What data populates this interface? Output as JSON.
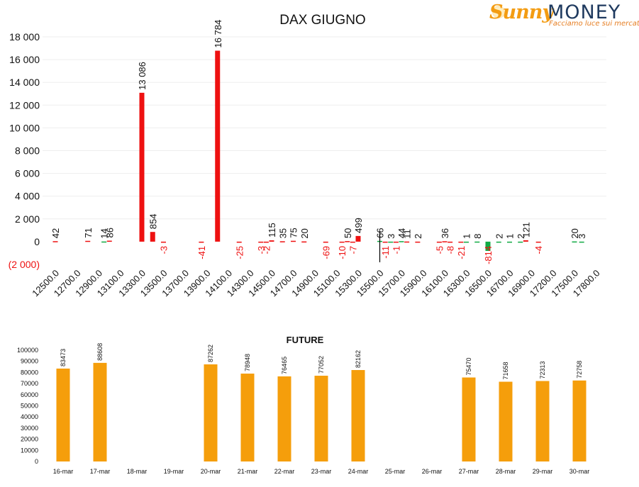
{
  "logo": {
    "brand1": "Sunny",
    "brand2": "MONEY",
    "tagline": "Facciamo luce sui mercati"
  },
  "colors": {
    "call": "#ee1111",
    "put": "#11aa44",
    "future": "#f59e0b",
    "text": "#111111",
    "negative": "#ee1111",
    "spot_line": "#000000"
  },
  "chart_data": [
    {
      "type": "bar",
      "title": "DAX GIUGNO",
      "ylim": [
        -2000,
        18000
      ],
      "yticks": [
        {
          "v": 18000,
          "label": "18 000"
        },
        {
          "v": 16000,
          "label": "16 000"
        },
        {
          "v": 14000,
          "label": "14 000"
        },
        {
          "v": 12000,
          "label": "12 000"
        },
        {
          "v": 10000,
          "label": "10 000"
        },
        {
          "v": 8000,
          "label": "8 000"
        },
        {
          "v": 6000,
          "label": "6 000"
        },
        {
          "v": 4000,
          "label": "4 000"
        },
        {
          "v": 2000,
          "label": "2 000"
        },
        {
          "v": 0,
          "label": "0"
        },
        {
          "v": -2000,
          "label": "(2 000)"
        }
      ],
      "categories": [
        "12500.0",
        "12700.0",
        "12900.0",
        "13100.0",
        "13300.0",
        "13500.0",
        "13700.0",
        "13900.0",
        "14100.0",
        "14300.0",
        "14500.0",
        "14700.0",
        "14900.0",
        "15100.0",
        "15300.0",
        "15500.0",
        "15700.0",
        "15900.0",
        "16100.0",
        "16300.0",
        "16500.0",
        "16700.0",
        "16900.0",
        "17200.0",
        "17500.0",
        "17800.0"
      ],
      "category_positions": [
        12500,
        12700,
        12900,
        13100,
        13300,
        13500,
        13700,
        13900,
        14100,
        14300,
        14500,
        14700,
        14900,
        15100,
        15300,
        15500,
        15700,
        15900,
        16100,
        16300,
        16500,
        16700,
        16900,
        17200,
        17500,
        17800
      ],
      "spot_line_at": 15500,
      "bars": [
        {
          "strike": 12500,
          "value": 42,
          "label": "42",
          "color": "call"
        },
        {
          "strike": 12800,
          "value": 71,
          "label": "71",
          "color": "call"
        },
        {
          "strike": 12950,
          "value": 14,
          "label": "14",
          "color": "put"
        },
        {
          "strike": 13000,
          "value": 86,
          "label": "86",
          "color": "call"
        },
        {
          "strike": 13300,
          "value": 13086,
          "label": "13 086",
          "color": "call"
        },
        {
          "strike": 13400,
          "value": 854,
          "label": "854",
          "color": "call"
        },
        {
          "strike": 13500,
          "value": -3,
          "label": "-3",
          "color": "call"
        },
        {
          "strike": 13850,
          "value": -41,
          "label": "-41",
          "color": "call"
        },
        {
          "strike": 14000,
          "value": 16784,
          "label": "16 784",
          "color": "call"
        },
        {
          "strike": 14200,
          "value": -25,
          "label": "-25",
          "color": "call"
        },
        {
          "strike": 14400,
          "value": -3,
          "label": "-3",
          "color": "call"
        },
        {
          "strike": 14450,
          "value": -2,
          "label": "-2",
          "color": "call"
        },
        {
          "strike": 14500,
          "value": 115,
          "label": "115",
          "color": "call"
        },
        {
          "strike": 14600,
          "value": 35,
          "label": "35",
          "color": "call"
        },
        {
          "strike": 14700,
          "value": 75,
          "label": "75",
          "color": "call"
        },
        {
          "strike": 14800,
          "value": 20,
          "label": "20",
          "color": "call"
        },
        {
          "strike": 15000,
          "value": -69,
          "label": "-69",
          "color": "call"
        },
        {
          "strike": 15150,
          "value": -10,
          "label": "-10",
          "color": "call"
        },
        {
          "strike": 15200,
          "value": 50,
          "label": "50",
          "color": "call"
        },
        {
          "strike": 15250,
          "value": -7,
          "label": "-7",
          "color": "call"
        },
        {
          "strike": 15300,
          "value": 499,
          "label": "499",
          "color": "call"
        },
        {
          "strike": 15500,
          "value": 66,
          "label": "66",
          "color": "put"
        },
        {
          "strike": 15550,
          "value": -11,
          "label": "-11",
          "color": "call"
        },
        {
          "strike": 15600,
          "value": 3,
          "label": "3",
          "color": "put"
        },
        {
          "strike": 15650,
          "value": -1,
          "label": "-1",
          "color": "call"
        },
        {
          "strike": 15700,
          "value": 44,
          "label": "44",
          "color": "put"
        },
        {
          "strike": 15750,
          "value": 11,
          "label": "11",
          "color": "call"
        },
        {
          "strike": 15850,
          "value": 2,
          "label": "2",
          "color": "call"
        },
        {
          "strike": 16050,
          "value": -5,
          "label": "-5",
          "color": "call"
        },
        {
          "strike": 16100,
          "value": 36,
          "label": "36",
          "color": "call"
        },
        {
          "strike": 16150,
          "value": -8,
          "label": "-8",
          "color": "call"
        },
        {
          "strike": 16250,
          "value": -21,
          "label": "-21",
          "color": "call"
        },
        {
          "strike": 16300,
          "value": 1,
          "label": "1",
          "color": "put"
        },
        {
          "strike": 16400,
          "value": 8,
          "label": "8",
          "color": "put"
        },
        {
          "strike": 16500,
          "value": -814,
          "label": "-814",
          "color": "put"
        },
        {
          "strike": 16600,
          "value": 2,
          "label": "2",
          "color": "put"
        },
        {
          "strike": 16700,
          "value": 1,
          "label": "1",
          "color": "put"
        },
        {
          "strike": 16800,
          "value": 2,
          "label": "2",
          "color": "put"
        },
        {
          "strike": 16850,
          "value": 121,
          "label": "121",
          "color": "call"
        },
        {
          "strike": 17000,
          "value": -4,
          "label": "-4",
          "color": "call"
        },
        {
          "strike": 17500,
          "value": 20,
          "label": "20",
          "color": "put"
        },
        {
          "strike": 17600,
          "value": 3,
          "label": "3",
          "color": "put"
        }
      ]
    },
    {
      "type": "bar",
      "title": "FUTURE",
      "ylim": [
        0,
        100000
      ],
      "yticks": [
        0,
        10000,
        20000,
        30000,
        40000,
        50000,
        60000,
        70000,
        80000,
        90000,
        100000
      ],
      "categories": [
        "16-mar",
        "17-mar",
        "18-mar",
        "19-mar",
        "20-mar",
        "21-mar",
        "22-mar",
        "23-mar",
        "24-mar",
        "25-mar",
        "26-mar",
        "27-mar",
        "28-mar",
        "29-mar",
        "30-mar"
      ],
      "values": [
        83473,
        88608,
        null,
        null,
        87262,
        78948,
        76465,
        77052,
        82162,
        null,
        null,
        75470,
        71658,
        72313,
        72758
      ]
    }
  ]
}
